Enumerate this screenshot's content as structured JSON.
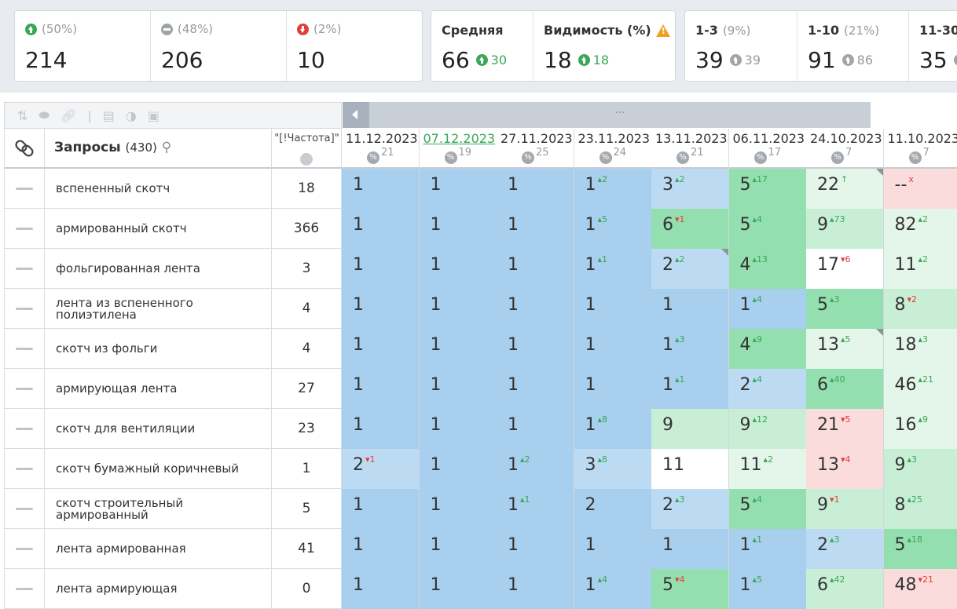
{
  "summary": {
    "group1": [
      {
        "icon": "arrow-up-circle-icon",
        "pct": "(50%)",
        "value": "214"
      },
      {
        "icon": "minus-circle-icon",
        "pct": "(48%)",
        "value": "206"
      },
      {
        "icon": "arrow-down-circle-icon",
        "pct": "(2%)",
        "value": "10"
      }
    ],
    "avg": {
      "label": "Средняя",
      "value": "66",
      "delta": "30"
    },
    "visibility": {
      "label": "Видимость (%)",
      "value": "18",
      "delta": "18"
    },
    "ranges": [
      {
        "label": "1-3",
        "pct": "(9%)",
        "value": "39",
        "delta": "39"
      },
      {
        "label": "1-10",
        "pct": "(21%)",
        "value": "91",
        "delta": "86"
      },
      {
        "label": "11-30",
        "pct": "",
        "value": "35",
        "delta": ""
      }
    ]
  },
  "table": {
    "query_header": "Запросы",
    "query_count": "(430)",
    "freq_header": "\"[!Частота]\"",
    "dates": [
      {
        "date": "11.12.2023",
        "pct": "21",
        "highlight": false
      },
      {
        "date": "07.12.2023",
        "pct": "19",
        "highlight": true
      },
      {
        "date": "27.11.2023",
        "pct": "25",
        "highlight": false
      },
      {
        "date": "23.11.2023",
        "pct": "24",
        "highlight": false
      },
      {
        "date": "13.11.2023",
        "pct": "21",
        "highlight": false
      },
      {
        "date": "06.11.2023",
        "pct": "17",
        "highlight": false
      },
      {
        "date": "24.10.2023",
        "pct": "7",
        "highlight": false
      },
      {
        "date": "11.10.2023",
        "pct": "7",
        "highlight": false
      }
    ],
    "rows": [
      {
        "query": "вспененный скотч",
        "freq": "18",
        "cells": [
          [
            "1",
            "",
            "",
            "b1"
          ],
          [
            "1",
            "",
            "",
            "b1"
          ],
          [
            "1",
            "",
            "",
            "b1"
          ],
          [
            "1",
            "2",
            "up",
            "b1"
          ],
          [
            "3",
            "2",
            "up",
            "b2"
          ],
          [
            "5",
            "17",
            "up",
            "g1"
          ],
          [
            "22",
            "↑",
            "up",
            "g3"
          ],
          [
            "--",
            "x",
            "dn",
            "r1"
          ]
        ]
      },
      {
        "query": "армированный скотч",
        "freq": "366",
        "cells": [
          [
            "1",
            "",
            "",
            "b1"
          ],
          [
            "1",
            "",
            "",
            "b1"
          ],
          [
            "1",
            "",
            "",
            "b1"
          ],
          [
            "1",
            "5",
            "up",
            "b1"
          ],
          [
            "6",
            "1",
            "dn",
            "g1"
          ],
          [
            "5",
            "4",
            "up",
            "g1"
          ],
          [
            "9",
            "73",
            "up",
            "g2"
          ],
          [
            "82",
            "2",
            "up",
            "g3"
          ]
        ]
      },
      {
        "query": "фольгированная лента",
        "freq": "3",
        "cells": [
          [
            "1",
            "",
            "",
            "b1"
          ],
          [
            "1",
            "",
            "",
            "b1"
          ],
          [
            "1",
            "",
            "",
            "b1"
          ],
          [
            "1",
            "1",
            "up",
            "b1"
          ],
          [
            "2",
            "2",
            "up",
            "b2"
          ],
          [
            "4",
            "13",
            "up",
            "g1"
          ],
          [
            "17",
            "6",
            "dn",
            "w"
          ],
          [
            "11",
            "2",
            "up",
            "g3"
          ]
        ]
      },
      {
        "query": "лента из вспененного полиэтилена",
        "freq": "4",
        "cells": [
          [
            "1",
            "",
            "",
            "b1"
          ],
          [
            "1",
            "",
            "",
            "b1"
          ],
          [
            "1",
            "",
            "",
            "b1"
          ],
          [
            "1",
            "",
            "",
            "b1"
          ],
          [
            "1",
            "",
            "",
            "b1"
          ],
          [
            "1",
            "4",
            "up",
            "b1"
          ],
          [
            "5",
            "3",
            "up",
            "g1"
          ],
          [
            "8",
            "2",
            "dn",
            "g2"
          ]
        ]
      },
      {
        "query": "скотч из фольги",
        "freq": "4",
        "cells": [
          [
            "1",
            "",
            "",
            "b1"
          ],
          [
            "1",
            "",
            "",
            "b1"
          ],
          [
            "1",
            "",
            "",
            "b1"
          ],
          [
            "1",
            "",
            "",
            "b1"
          ],
          [
            "1",
            "3",
            "up",
            "b1"
          ],
          [
            "4",
            "9",
            "up",
            "g1"
          ],
          [
            "13",
            "5",
            "up",
            "g3"
          ],
          [
            "18",
            "3",
            "up",
            "g3"
          ]
        ]
      },
      {
        "query": "армирующая лента",
        "freq": "27",
        "cells": [
          [
            "1",
            "",
            "",
            "b1"
          ],
          [
            "1",
            "",
            "",
            "b1"
          ],
          [
            "1",
            "",
            "",
            "b1"
          ],
          [
            "1",
            "",
            "",
            "b1"
          ],
          [
            "1",
            "1",
            "up",
            "b1"
          ],
          [
            "2",
            "4",
            "up",
            "b2"
          ],
          [
            "6",
            "40",
            "up",
            "g1"
          ],
          [
            "46",
            "21",
            "up",
            "g3"
          ]
        ]
      },
      {
        "query": "скотч для вентиляции",
        "freq": "23",
        "cells": [
          [
            "1",
            "",
            "",
            "b1"
          ],
          [
            "1",
            "",
            "",
            "b1"
          ],
          [
            "1",
            "",
            "",
            "b1"
          ],
          [
            "1",
            "8",
            "up",
            "b1"
          ],
          [
            "9",
            "",
            "",
            "g2"
          ],
          [
            "9",
            "12",
            "up",
            "g2"
          ],
          [
            "21",
            "5",
            "dn",
            "r1"
          ],
          [
            "16",
            "9",
            "up",
            "g3"
          ]
        ]
      },
      {
        "query": "скотч бумажный коричневый",
        "freq": "1",
        "cells": [
          [
            "2",
            "1",
            "dn",
            "b2"
          ],
          [
            "1",
            "",
            "",
            "b1"
          ],
          [
            "1",
            "2",
            "up",
            "b1"
          ],
          [
            "3",
            "8",
            "up",
            "b2"
          ],
          [
            "11",
            "",
            "",
            "w"
          ],
          [
            "11",
            "2",
            "up",
            "g3"
          ],
          [
            "13",
            "4",
            "dn",
            "r1"
          ],
          [
            "9",
            "3",
            "up",
            "g2"
          ]
        ]
      },
      {
        "query": "скотч строительный армированный",
        "freq": "5",
        "cells": [
          [
            "1",
            "",
            "",
            "b1"
          ],
          [
            "1",
            "",
            "",
            "b1"
          ],
          [
            "1",
            "1",
            "up",
            "b1"
          ],
          [
            "2",
            "",
            "",
            "b1"
          ],
          [
            "2",
            "3",
            "up",
            "b2"
          ],
          [
            "5",
            "4",
            "up",
            "g1"
          ],
          [
            "9",
            "1",
            "dn",
            "g2"
          ],
          [
            "8",
            "25",
            "up",
            "g2"
          ]
        ]
      },
      {
        "query": "лента армированная",
        "freq": "41",
        "cells": [
          [
            "1",
            "",
            "",
            "b1"
          ],
          [
            "1",
            "",
            "",
            "b1"
          ],
          [
            "1",
            "",
            "",
            "b1"
          ],
          [
            "1",
            "",
            "",
            "b1"
          ],
          [
            "1",
            "",
            "",
            "b1"
          ],
          [
            "1",
            "1",
            "up",
            "b1"
          ],
          [
            "2",
            "3",
            "up",
            "b2"
          ],
          [
            "5",
            "18",
            "up",
            "g1"
          ]
        ]
      },
      {
        "query": "лента армирующая",
        "freq": "0",
        "cells": [
          [
            "1",
            "",
            "",
            "b1"
          ],
          [
            "1",
            "",
            "",
            "b1"
          ],
          [
            "1",
            "",
            "",
            "b1"
          ],
          [
            "1",
            "4",
            "up",
            "b1"
          ],
          [
            "5",
            "4",
            "dn",
            "g1"
          ],
          [
            "1",
            "5",
            "up",
            "b1"
          ],
          [
            "6",
            "42",
            "up",
            "g2"
          ],
          [
            "48",
            "21",
            "dn",
            "r1"
          ]
        ]
      }
    ]
  }
}
